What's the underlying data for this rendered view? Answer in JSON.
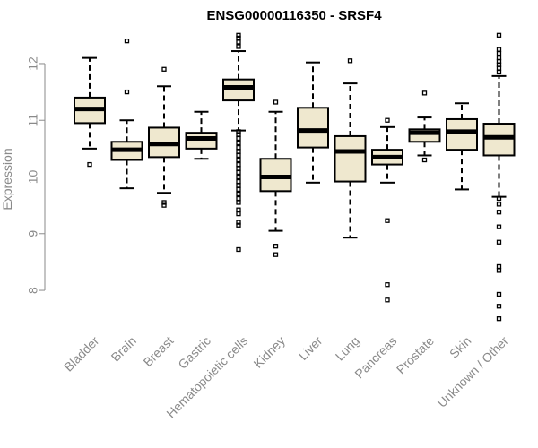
{
  "colors": {
    "box_fill": "#efe8cf",
    "box_stroke": "#000000",
    "median": "#000000",
    "axis": "#8a8a8a",
    "label": "#8a8a8a",
    "title": "#000000"
  },
  "chart_data": {
    "type": "boxplot",
    "title": "ENSG00000116350 - SRSF4",
    "xlabel": "",
    "ylabel": "Expression",
    "ylim": [
      7.4,
      12.6
    ],
    "yticks": [
      8,
      9,
      10,
      11,
      12
    ],
    "categories": [
      "Bladder",
      "Brain",
      "Breast",
      "Gastric",
      "Hematopoietic cells",
      "Kidney",
      "Liver",
      "Lung",
      "Pancreas",
      "Prostate",
      "Skin",
      "Unknown / Other"
    ],
    "boxes": [
      {
        "category": "Bladder",
        "whisker_low": 10.5,
        "q1": 10.95,
        "median": 11.2,
        "q3": 11.4,
        "whisker_high": 12.1,
        "outliers": [
          10.22
        ]
      },
      {
        "category": "Brain",
        "whisker_low": 9.8,
        "q1": 10.3,
        "median": 10.48,
        "q3": 10.62,
        "whisker_high": 11.0,
        "outliers": [
          11.5,
          12.4
        ]
      },
      {
        "category": "Breast",
        "whisker_low": 9.72,
        "q1": 10.35,
        "median": 10.58,
        "q3": 10.87,
        "whisker_high": 11.6,
        "outliers": [
          9.5,
          9.55,
          11.9
        ]
      },
      {
        "category": "Gastric",
        "whisker_low": 10.32,
        "q1": 10.5,
        "median": 10.68,
        "q3": 10.78,
        "whisker_high": 11.15,
        "outliers": []
      },
      {
        "category": "Hematopoietic cells",
        "whisker_low": 10.82,
        "q1": 11.35,
        "median": 11.58,
        "q3": 11.72,
        "whisker_high": 12.22,
        "outliers": [
          8.72,
          9.15,
          9.2,
          9.35,
          9.42,
          9.55,
          9.62,
          9.7,
          9.78,
          9.85,
          9.92,
          10.0,
          10.08,
          10.15,
          10.22,
          10.3,
          10.38,
          10.45,
          10.52,
          10.6,
          10.68,
          10.75,
          10.8,
          12.3,
          12.38,
          12.45,
          12.5
        ]
      },
      {
        "category": "Kidney",
        "whisker_low": 9.05,
        "q1": 9.75,
        "median": 10.0,
        "q3": 10.32,
        "whisker_high": 11.15,
        "outliers": [
          8.63,
          8.78,
          11.32
        ]
      },
      {
        "category": "Liver",
        "whisker_low": 9.9,
        "q1": 10.52,
        "median": 10.82,
        "q3": 11.22,
        "whisker_high": 12.02,
        "outliers": []
      },
      {
        "category": "Lung",
        "whisker_low": 8.93,
        "q1": 9.92,
        "median": 10.45,
        "q3": 10.72,
        "whisker_high": 11.65,
        "outliers": [
          12.05
        ]
      },
      {
        "category": "Pancreas",
        "whisker_low": 9.9,
        "q1": 10.22,
        "median": 10.35,
        "q3": 10.48,
        "whisker_high": 10.88,
        "outliers": [
          7.83,
          8.1,
          9.23,
          11.0
        ]
      },
      {
        "category": "Prostate",
        "whisker_low": 10.38,
        "q1": 10.62,
        "median": 10.78,
        "q3": 10.84,
        "whisker_high": 11.05,
        "outliers": [
          10.3,
          11.48
        ]
      },
      {
        "category": "Skin",
        "whisker_low": 9.78,
        "q1": 10.48,
        "median": 10.8,
        "q3": 11.02,
        "whisker_high": 11.3,
        "outliers": []
      },
      {
        "category": "Unknown / Other",
        "whisker_low": 9.65,
        "q1": 10.38,
        "median": 10.7,
        "q3": 10.94,
        "whisker_high": 11.78,
        "outliers": [
          7.5,
          7.72,
          7.93,
          8.35,
          8.42,
          8.85,
          9.12,
          9.38,
          9.52,
          9.62,
          11.85,
          11.92,
          11.98,
          12.04,
          12.1,
          12.18,
          12.25,
          12.5
        ]
      }
    ]
  }
}
